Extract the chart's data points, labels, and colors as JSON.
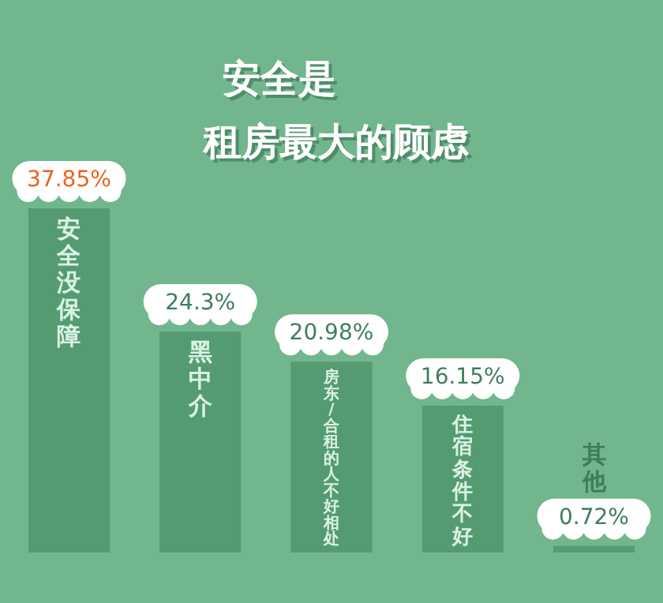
{
  "chart_data": {
    "type": "bar",
    "title": "安全是",
    "subtitle": "租房最大的顾虑",
    "categories": [
      "安全没保障",
      "黑中介",
      "房东/合租的人不好相处",
      "住宿条件不好",
      "其他"
    ],
    "values": [
      37.85,
      24.3,
      20.98,
      16.15,
      0.72
    ],
    "value_labels": [
      "37.85%",
      "24.3%",
      "20.98%",
      "16.15%",
      "0.72%"
    ],
    "color": "#559b72"
  }
}
